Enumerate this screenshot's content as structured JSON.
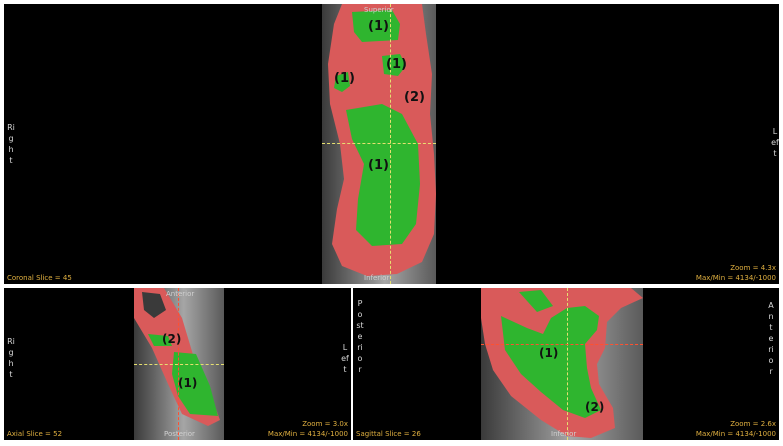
{
  "coronal": {
    "superior": "Superior",
    "inferior": "Inferior",
    "right": "Right",
    "left": "Left",
    "slice": "Coronal Slice = 45",
    "zoom": "Zoom = 4.3x",
    "maxmin": "Max/Min = 4134/-1000",
    "labels": [
      "(1)",
      "(1)",
      "(1)",
      "(2)",
      "(1)"
    ]
  },
  "axial": {
    "anterior": "Anterior",
    "posterior": "Posterior",
    "right": "Right",
    "left": "Left",
    "slice": "Axial Slice = 52",
    "zoom": "Zoom = 3.0x",
    "maxmin": "Max/Min = 4134/-1000",
    "labels": [
      "(2)",
      "(1)"
    ]
  },
  "sagittal": {
    "posterior": "Posterior",
    "anterior": "Anterior",
    "inferior": "Inferior",
    "slice": "Sagittal Slice = 26",
    "zoom": "Zoom = 2.6x",
    "maxmin": "Max/Min = 4134/-1000",
    "labels": [
      "(1)",
      "(2)"
    ]
  },
  "colors": {
    "segment_red": "#d95a5a",
    "segment_green": "#2fb52f",
    "info_text": "#e0b040",
    "crosshair": "#e6e070"
  }
}
